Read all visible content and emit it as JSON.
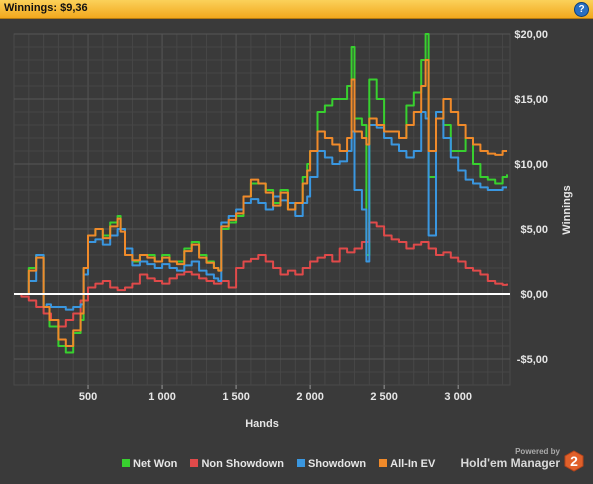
{
  "window": {
    "title": "Winnings: $9,36",
    "help_label": "?"
  },
  "brand": {
    "powered_by": "Powered by",
    "name": "Hold'em Manager",
    "logo_digit": "2"
  },
  "colors": {
    "net_won": "#38d02f",
    "non_showdown": "#e04a4a",
    "showdown": "#3a97e0",
    "all_in_ev": "#f08a2a",
    "zero_line": "#ffffff",
    "background": "#3a3a3a"
  },
  "chart_data": {
    "type": "line",
    "xlabel": "Hands",
    "ylabel": "Winnings",
    "xlim": [
      0,
      3350
    ],
    "ylim": [
      -7,
      20
    ],
    "x_ticks": [
      500,
      1000,
      1500,
      2000,
      2500,
      3000
    ],
    "x_tick_labels": [
      "500",
      "1 000",
      "1 500",
      "2 000",
      "2 500",
      "3 000"
    ],
    "y_ticks": [
      -5,
      0,
      5,
      10,
      15,
      20
    ],
    "y_tick_labels": [
      "-$5,00",
      "$0,00",
      "$5,00",
      "$10,00",
      "$15,00",
      "$20,00"
    ],
    "grid": true,
    "legend_position": "bottom",
    "series": [
      {
        "name": "Net Won",
        "key": "net_won",
        "x": [
          0,
          100,
          150,
          200,
          240,
          300,
          350,
          400,
          450,
          470,
          500,
          550,
          600,
          650,
          700,
          720,
          750,
          800,
          850,
          900,
          950,
          1000,
          1050,
          1100,
          1150,
          1200,
          1250,
          1300,
          1350,
          1380,
          1400,
          1450,
          1500,
          1550,
          1600,
          1650,
          1700,
          1750,
          1800,
          1850,
          1900,
          1950,
          1980,
          2000,
          2050,
          2100,
          2150,
          2200,
          2250,
          2280,
          2300,
          2350,
          2380,
          2400,
          2450,
          2500,
          2550,
          2600,
          2650,
          2700,
          2750,
          2780,
          2800,
          2850,
          2900,
          2950,
          3000,
          3050,
          3100,
          3150,
          3200,
          3250,
          3300,
          3330
        ],
        "y": [
          0,
          2,
          3,
          -1,
          -2.5,
          -4,
          -4.5,
          -3,
          -2,
          2,
          4.5,
          5,
          4.5,
          5.5,
          6,
          5,
          3,
          2.5,
          3,
          3,
          2.5,
          3,
          2.5,
          2.5,
          3.5,
          4,
          3,
          2.5,
          2,
          1.8,
          5,
          5.5,
          6,
          7.5,
          8.5,
          8.5,
          8,
          7,
          8,
          6.5,
          7,
          9,
          10,
          11,
          14,
          14.5,
          15,
          15,
          16,
          19,
          13.5,
          13,
          3,
          16.5,
          15,
          12.5,
          12.5,
          12,
          14.5,
          15.5,
          18,
          20,
          9,
          14,
          13,
          11,
          11,
          12,
          10,
          9,
          8.8,
          8.5,
          9,
          9.2
        ]
      },
      {
        "name": "Non Showdown",
        "key": "non_showdown",
        "x": [
          0,
          50,
          100,
          150,
          200,
          250,
          300,
          350,
          400,
          450,
          500,
          550,
          600,
          650,
          700,
          750,
          800,
          850,
          900,
          950,
          1000,
          1050,
          1100,
          1150,
          1200,
          1250,
          1300,
          1350,
          1400,
          1450,
          1500,
          1550,
          1600,
          1650,
          1700,
          1750,
          1800,
          1850,
          1900,
          1950,
          2000,
          2050,
          2100,
          2150,
          2200,
          2250,
          2300,
          2350,
          2400,
          2450,
          2500,
          2550,
          2600,
          2650,
          2700,
          2750,
          2800,
          2850,
          2900,
          2950,
          3000,
          3050,
          3100,
          3150,
          3200,
          3250,
          3300,
          3330
        ],
        "y": [
          0,
          -0.2,
          -0.5,
          -1,
          -1.5,
          -2,
          -2.5,
          -2,
          -1.5,
          -0.5,
          0.5,
          0.8,
          1,
          0.5,
          0.3,
          0.5,
          0.8,
          1.5,
          1.2,
          1,
          0.8,
          1.2,
          1.5,
          1.7,
          1.5,
          1.2,
          1,
          0.8,
          1,
          0.5,
          2,
          2.5,
          2.7,
          3,
          2.5,
          2,
          1.5,
          1.8,
          1.5,
          2,
          2.5,
          2.8,
          3,
          2.5,
          3.5,
          3.2,
          3.5,
          4,
          5.5,
          5.2,
          4.5,
          4.2,
          4,
          3.5,
          3.8,
          4,
          3.5,
          3,
          3.2,
          2.8,
          2.5,
          2,
          1.8,
          1.5,
          1,
          0.8,
          0.7,
          0.8
        ]
      },
      {
        "name": "Showdown",
        "key": "showdown",
        "x": [
          0,
          100,
          150,
          200,
          220,
          250,
          300,
          350,
          400,
          450,
          470,
          500,
          550,
          600,
          650,
          700,
          750,
          800,
          850,
          900,
          950,
          1000,
          1050,
          1100,
          1150,
          1200,
          1250,
          1300,
          1350,
          1380,
          1400,
          1450,
          1500,
          1550,
          1600,
          1650,
          1700,
          1750,
          1800,
          1850,
          1900,
          1950,
          1980,
          2000,
          2050,
          2100,
          2150,
          2200,
          2250,
          2280,
          2300,
          2350,
          2380,
          2400,
          2450,
          2500,
          2550,
          2600,
          2650,
          2700,
          2750,
          2780,
          2800,
          2850,
          2900,
          2950,
          3000,
          3050,
          3100,
          3150,
          3200,
          3250,
          3300,
          3330
        ],
        "y": [
          0,
          1,
          3,
          -1,
          -0.8,
          -1,
          -1,
          -1.2,
          -1,
          -0.8,
          1.5,
          4,
          4.2,
          3.8,
          4.5,
          5,
          3.5,
          2.2,
          2.5,
          2.3,
          2,
          2.3,
          2,
          1.8,
          2.2,
          2.5,
          1.8,
          1.5,
          1.2,
          1,
          5.5,
          6,
          6.5,
          7,
          7.3,
          7,
          6.5,
          7.5,
          7.2,
          7,
          6,
          7,
          7.5,
          9,
          11,
          10.5,
          10,
          10.2,
          11,
          12.5,
          8,
          6.5,
          2.5,
          13,
          12.8,
          12,
          11.5,
          11,
          10.5,
          11,
          14,
          13.5,
          4.5,
          14,
          12,
          10.5,
          9.5,
          8.8,
          8.5,
          8.2,
          8,
          8,
          8.2,
          8.2
        ]
      },
      {
        "name": "All-In EV",
        "key": "all_in_ev",
        "x": [
          0,
          100,
          150,
          200,
          240,
          300,
          350,
          400,
          450,
          470,
          500,
          550,
          600,
          650,
          700,
          720,
          750,
          800,
          850,
          900,
          950,
          1000,
          1050,
          1100,
          1150,
          1200,
          1250,
          1300,
          1350,
          1380,
          1400,
          1450,
          1500,
          1550,
          1600,
          1650,
          1700,
          1750,
          1800,
          1850,
          1900,
          1950,
          1980,
          2000,
          2050,
          2100,
          2150,
          2200,
          2250,
          2280,
          2300,
          2350,
          2380,
          2400,
          2450,
          2500,
          2550,
          2600,
          2650,
          2700,
          2750,
          2780,
          2800,
          2850,
          2900,
          2950,
          3000,
          3050,
          3100,
          3150,
          3200,
          3250,
          3300,
          3330
        ],
        "y": [
          0,
          1.8,
          2.8,
          -1,
          -2,
          -3.5,
          -4,
          -2.8,
          -1.5,
          2,
          4.5,
          5,
          4.3,
          5.2,
          5.8,
          4.8,
          3,
          2.6,
          3,
          2.8,
          2.5,
          2.8,
          2.5,
          2.3,
          3.3,
          3.8,
          2.8,
          2.4,
          2,
          1.8,
          5.2,
          5.7,
          6.2,
          7.5,
          8.8,
          8.5,
          7.8,
          6.8,
          7.8,
          6.5,
          7,
          8.5,
          9.5,
          11,
          12.5,
          12,
          11.5,
          11,
          12,
          16.5,
          12.5,
          12,
          11.5,
          13.5,
          13,
          12.5,
          12.5,
          12,
          13,
          14,
          16,
          18,
          11,
          13.5,
          15,
          14,
          13,
          12,
          11.5,
          11,
          10.8,
          10.7,
          11,
          11
        ]
      }
    ]
  }
}
